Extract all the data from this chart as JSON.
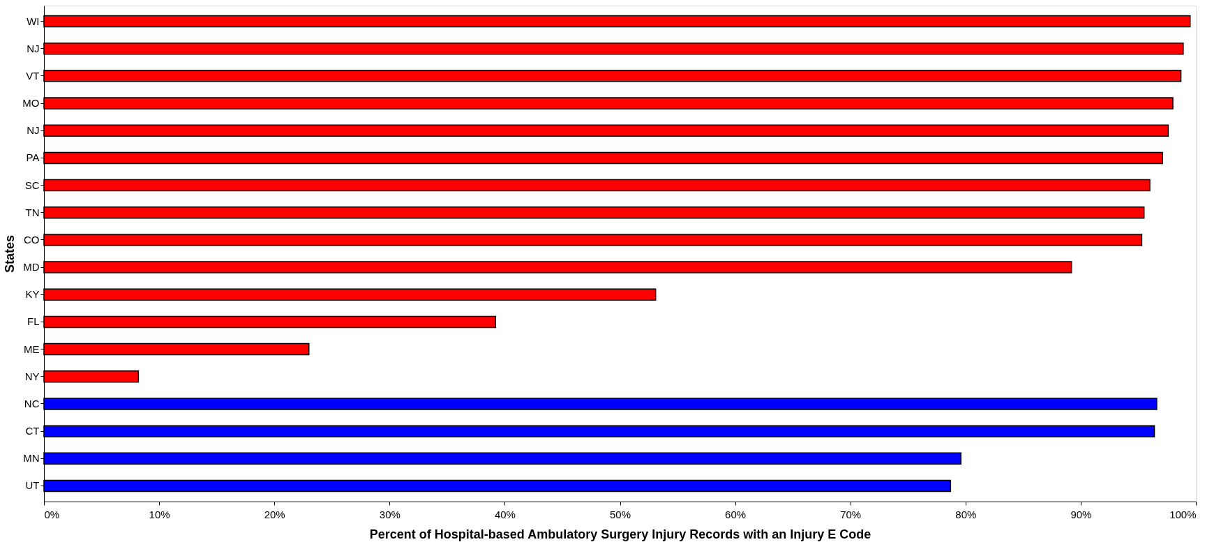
{
  "chart_data": {
    "type": "bar",
    "orientation": "horizontal",
    "xlabel": "Percent of Hospital-based Ambulatory Surgery Injury Records with an Injury E Code",
    "ylabel": "States",
    "categories": [
      "WI",
      "NJ",
      "VT",
      "MO",
      "NJ",
      "PA",
      "SC",
      "TN",
      "CO",
      "MD",
      "KY",
      "FL",
      "ME",
      "NY",
      "NC",
      "CT",
      "MN",
      "UT"
    ],
    "values": [
      99.5,
      98.9,
      98.7,
      98.0,
      97.6,
      97.1,
      96.0,
      95.5,
      95.3,
      89.2,
      53.1,
      39.2,
      23.0,
      8.2,
      96.6,
      96.4,
      79.6,
      78.7
    ],
    "colors": [
      "#ff0000",
      "#ff0000",
      "#ff0000",
      "#ff0000",
      "#ff0000",
      "#ff0000",
      "#ff0000",
      "#ff0000",
      "#ff0000",
      "#ff0000",
      "#ff0000",
      "#ff0000",
      "#ff0000",
      "#ff0000",
      "#0000ff",
      "#0000ff",
      "#0000ff",
      "#0000ff"
    ],
    "xlim": [
      0,
      100
    ],
    "xticks": [
      {
        "value": 0,
        "label": "0%"
      },
      {
        "value": 10,
        "label": "10%"
      },
      {
        "value": 20,
        "label": "20%"
      },
      {
        "value": 30,
        "label": "30%"
      },
      {
        "value": 40,
        "label": "40%"
      },
      {
        "value": 50,
        "label": "50%"
      },
      {
        "value": 60,
        "label": "60%"
      },
      {
        "value": 70,
        "label": "70%"
      },
      {
        "value": 80,
        "label": "80%"
      },
      {
        "value": 90,
        "label": "90%"
      },
      {
        "value": 100,
        "label": "100%"
      }
    ],
    "grid": false
  }
}
